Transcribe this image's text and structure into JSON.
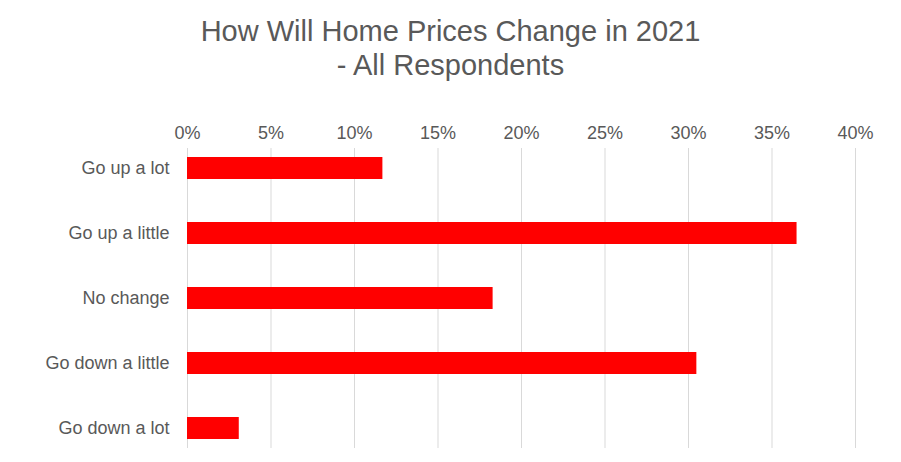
{
  "chart_data": {
    "type": "bar",
    "title": "How Will Home Prices Change in 2021",
    "subtitle": "- All Respondents",
    "orientation": "horizontal",
    "categories": [
      "Go up a lot",
      "Go up a little",
      "No change",
      "Go down a little",
      "Go down a lot"
    ],
    "values": [
      11.7,
      36.5,
      18.3,
      30.5,
      3.1
    ],
    "color": "#ff0000",
    "xlim": [
      0,
      40
    ],
    "xticks": [
      {
        "value": 0,
        "label": "0%"
      },
      {
        "value": 5,
        "label": "5%"
      },
      {
        "value": 10,
        "label": "10%"
      },
      {
        "value": 15,
        "label": "15%"
      },
      {
        "value": 20,
        "label": "20%"
      },
      {
        "value": 25,
        "label": "25%"
      },
      {
        "value": 30,
        "label": "30%"
      },
      {
        "value": 35,
        "label": "35%"
      },
      {
        "value": 40,
        "label": "40%"
      }
    ],
    "grid": true
  }
}
